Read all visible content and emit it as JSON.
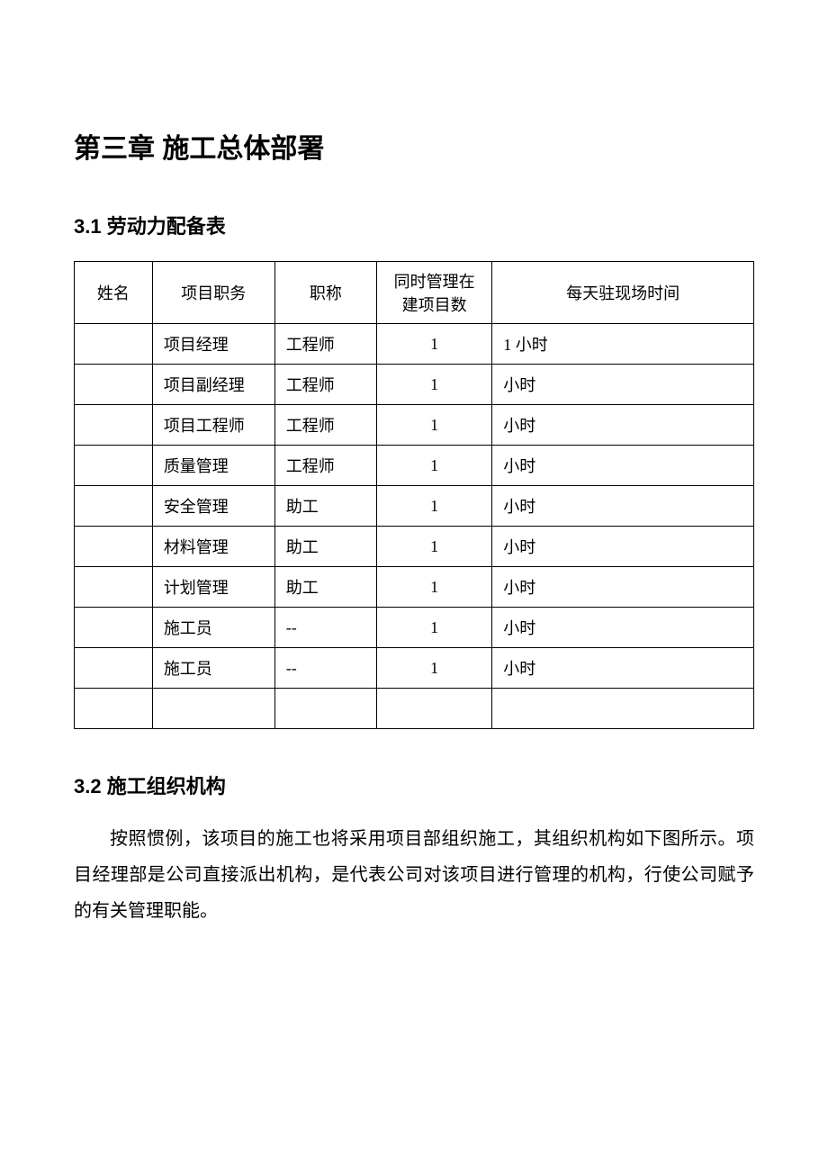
{
  "chapter": {
    "title": "第三章  施工总体部署"
  },
  "section1": {
    "title": "3.1  劳动力配备表",
    "table": {
      "columns": [
        "姓名",
        "项目职务",
        "职称",
        "同时管理在建项目数",
        "每天驻现场时间"
      ],
      "rows": [
        [
          "",
          "项目经理",
          "工程师",
          "1",
          "1 小时"
        ],
        [
          "",
          "项目副经理",
          "工程师",
          "1",
          "小时"
        ],
        [
          "",
          "项目工程师",
          "工程师",
          "1",
          "小时"
        ],
        [
          "",
          "质量管理",
          "工程师",
          "1",
          "小时"
        ],
        [
          "",
          "安全管理",
          "助工",
          "1",
          "小时"
        ],
        [
          "",
          "材料管理",
          "助工",
          "1",
          "小时"
        ],
        [
          "",
          "计划管理",
          "助工",
          "1",
          "小时"
        ],
        [
          "",
          "施工员",
          "--",
          "1",
          "小时"
        ],
        [
          "",
          "施工员",
          "--",
          "1",
          "小时"
        ],
        [
          "",
          "",
          "",
          "",
          ""
        ]
      ],
      "column_align": [
        "center",
        "left",
        "left",
        "center",
        "left"
      ],
      "border_color": "#000000",
      "font_size": 18
    }
  },
  "section2": {
    "title": "3.2  施工组织机构",
    "paragraph": "按照惯例，该项目的施工也将采用项目部组织施工，其组织机构如下图所示。项目经理部是公司直接派出机构，是代表公司对该项目进行管理的机构，行使公司赋予的有关管理职能。"
  },
  "style": {
    "background_color": "#ffffff",
    "text_color": "#000000",
    "chapter_fontsize": 30,
    "section_fontsize": 22,
    "body_fontsize": 20
  }
}
